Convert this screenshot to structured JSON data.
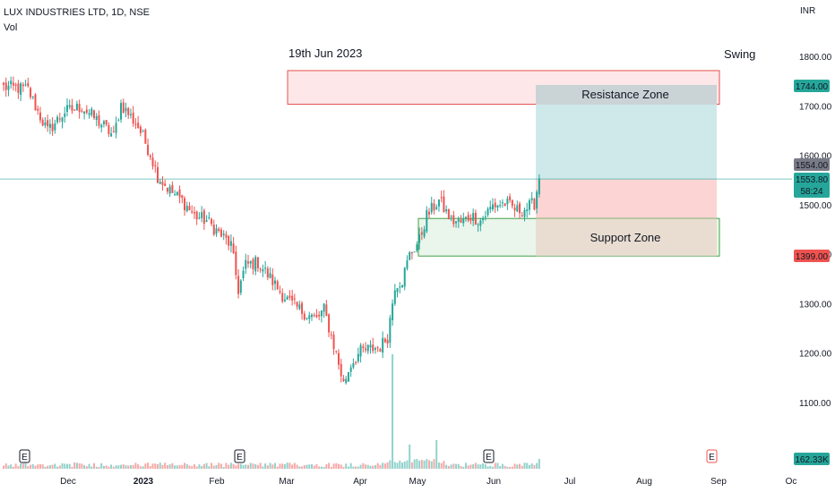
{
  "header": {
    "symbol_line": "LUX INDUSTRIES LTD, 1D, NSE",
    "indicator": "Vol",
    "currency": "INR"
  },
  "annotations": {
    "date_note": "19th Jun 2023",
    "style_note": "Swing",
    "resistance_label": "Resistance Zone",
    "support_label": "Support Zone",
    "event_marker": "E"
  },
  "colors": {
    "up": "#26a69a",
    "down": "#ef5350",
    "resistance_fill": "#fde7e8",
    "resistance_border": "#e5514f",
    "support_fill": "#eaf5ec",
    "support_border": "#43a047",
    "target_fill": "#cfe9ea",
    "stop_fill": "#fcd4d4",
    "current_price_line": "#26a69a"
  },
  "chart_data": {
    "type": "candlestick",
    "title": "LUX INDUSTRIES LTD, 1D, NSE",
    "ylabel": "INR",
    "ylim": [
      1060,
      1860
    ],
    "y_ticks": [
      1100,
      1200,
      1300,
      1400,
      1500,
      1600,
      1700,
      1800
    ],
    "y_tick_labels": [
      "1100.00",
      "1200.00",
      "1300.00",
      "1400.00",
      "1500.00",
      "1600.00",
      "1700.00",
      "1800.00"
    ],
    "x_tick_labels": [
      "Dec",
      "2023",
      "Feb",
      "Mar",
      "Apr",
      "May",
      "Jun",
      "Jul",
      "Aug",
      "Sep",
      "Oc"
    ],
    "price_labels": {
      "target": "1744.00",
      "last_close": "1554.00",
      "current_price": "1553.80",
      "countdown": "58:24",
      "stop": "1399.00",
      "volume_last": "162.33K"
    },
    "zones": {
      "resistance": {
        "label": "Resistance Zone",
        "low": 1705,
        "high": 1773
      },
      "support": {
        "label": "Support Zone",
        "low": 1398,
        "high": 1474
      }
    },
    "trade_box": {
      "entry": 1553.8,
      "target": 1744,
      "stop": 1399
    },
    "waypoints": [
      [
        0,
        1740
      ],
      [
        10,
        1735
      ],
      [
        14,
        1690
      ],
      [
        18,
        1650
      ],
      [
        25,
        1690
      ],
      [
        32,
        1700
      ],
      [
        40,
        1665
      ],
      [
        45,
        1640
      ],
      [
        48,
        1705
      ],
      [
        55,
        1660
      ],
      [
        60,
        1605
      ],
      [
        63,
        1560
      ],
      [
        68,
        1530
      ],
      [
        73,
        1510
      ],
      [
        78,
        1480
      ],
      [
        83,
        1470
      ],
      [
        88,
        1445
      ],
      [
        93,
        1420
      ],
      [
        96,
        1330
      ],
      [
        99,
        1380
      ],
      [
        104,
        1385
      ],
      [
        108,
        1360
      ],
      [
        114,
        1320
      ],
      [
        118,
        1300
      ],
      [
        124,
        1280
      ],
      [
        128,
        1270
      ],
      [
        131,
        1290
      ],
      [
        136,
        1200
      ],
      [
        139,
        1140
      ],
      [
        142,
        1180
      ],
      [
        146,
        1205
      ],
      [
        150,
        1210
      ],
      [
        154,
        1215
      ],
      [
        157,
        1235
      ],
      [
        160,
        1340
      ],
      [
        163,
        1350
      ],
      [
        166,
        1400
      ],
      [
        170,
        1430
      ],
      [
        173,
        1480
      ],
      [
        178,
        1510
      ],
      [
        183,
        1470
      ],
      [
        187,
        1465
      ],
      [
        191,
        1480
      ],
      [
        195,
        1470
      ],
      [
        200,
        1500
      ],
      [
        205,
        1505
      ],
      [
        210,
        1490
      ],
      [
        214,
        1495
      ],
      [
        217,
        1505
      ],
      [
        219,
        1555
      ]
    ]
  }
}
